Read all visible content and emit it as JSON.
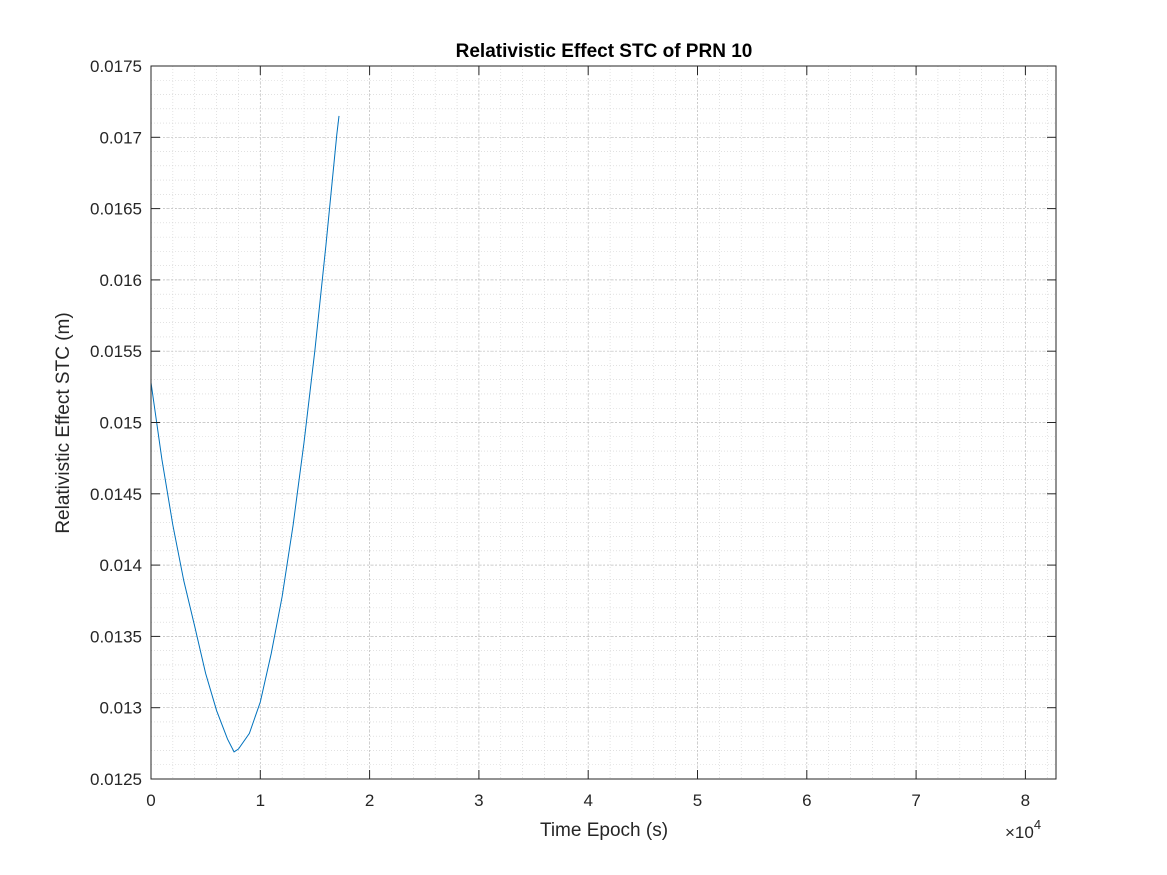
{
  "chart_data": {
    "type": "line",
    "title": "Relativistic Effect STC of PRN 10",
    "xlabel": "Time Epoch (s)",
    "ylabel": "Relativistic Effect STC (m)",
    "x_exponent_label": "×10",
    "x_exponent_power": "4",
    "xlim": [
      0,
      82800
    ],
    "ylim": [
      0.0125,
      0.0175
    ],
    "x_ticks": [
      0,
      10000,
      20000,
      30000,
      40000,
      50000,
      60000,
      70000,
      80000
    ],
    "x_tick_labels": [
      "0",
      "1",
      "2",
      "3",
      "4",
      "5",
      "6",
      "7",
      "8"
    ],
    "y_ticks": [
      0.0125,
      0.013,
      0.0135,
      0.014,
      0.0145,
      0.015,
      0.0155,
      0.016,
      0.0165,
      0.017,
      0.0175
    ],
    "y_tick_labels": [
      "0.0125",
      "0.013",
      "0.0135",
      "0.014",
      "0.0145",
      "0.015",
      "0.0155",
      "0.016",
      "0.0165",
      "0.017",
      "0.0175"
    ],
    "grid": true,
    "minor_grid": true,
    "series": [
      {
        "color": "#0072BD",
        "x": [
          0,
          1000,
          2000,
          3000,
          4000,
          5000,
          6000,
          7000,
          7600,
          8000,
          9000,
          10000,
          11000,
          12000,
          13000,
          14000,
          15000,
          16000,
          17000,
          17200
        ],
        "y": [
          0.01528,
          0.01474,
          0.01428,
          0.01389,
          0.01357,
          0.01324,
          0.01298,
          0.01278,
          0.01269,
          0.01271,
          0.01282,
          0.01304,
          0.01338,
          0.01378,
          0.01428,
          0.01486,
          0.01551,
          0.01624,
          0.01702,
          0.01715
        ]
      }
    ]
  }
}
